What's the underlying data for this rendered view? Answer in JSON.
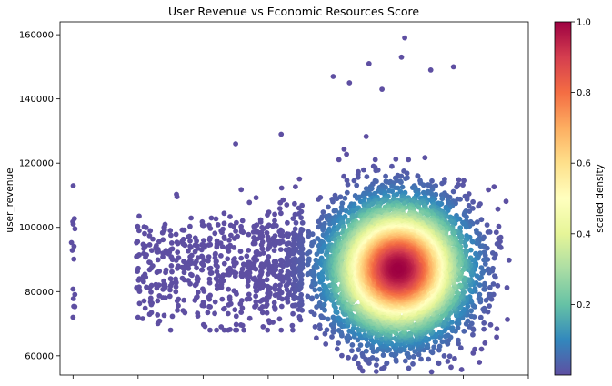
{
  "chart_data": {
    "type": "scatter",
    "title": "User Revenue vs Economic Resources Score",
    "xlabel": "",
    "ylabel": "user_revenue",
    "xlim": [
      -0.2,
      7.0
    ],
    "ylim": [
      54000,
      164000
    ],
    "x_ticks": [
      0,
      1,
      2,
      3,
      4,
      5,
      6,
      7
    ],
    "x_tick_labels_visible": false,
    "y_ticks": [
      60000,
      80000,
      100000,
      120000,
      140000,
      160000
    ],
    "y_tick_labels": [
      "60000",
      "80000",
      "100000",
      "120000",
      "140000",
      "160000"
    ],
    "grid": false,
    "color_encoding": "scaled density",
    "colorbar": {
      "label": "scaled density",
      "range": [
        0,
        1
      ],
      "ticks": [
        0.2,
        0.4,
        0.6,
        0.8,
        1.0
      ],
      "tick_labels": [
        "0.2",
        "0.4",
        "0.6",
        "0.8",
        "1.0"
      ],
      "colormap": "Spectral_r",
      "stops": [
        "#5e4fa2",
        "#3288bd",
        "#66c2a5",
        "#abdda4",
        "#e6f598",
        "#ffffbf",
        "#fee08b",
        "#fdae61",
        "#f46d43",
        "#d53e4f",
        "#9e0142"
      ]
    },
    "density_peak": {
      "x": 5.0,
      "y": 87000
    },
    "outliers": [
      {
        "x": 5.1,
        "y": 159000
      },
      {
        "x": 5.05,
        "y": 153000
      },
      {
        "x": 4.55,
        "y": 151000
      },
      {
        "x": 5.85,
        "y": 150000
      },
      {
        "x": 5.5,
        "y": 149000
      },
      {
        "x": 4.0,
        "y": 147000
      },
      {
        "x": 4.25,
        "y": 145000
      },
      {
        "x": 4.75,
        "y": 143000
      },
      {
        "x": 2.5,
        "y": 126000
      },
      {
        "x": 3.2,
        "y": 129000
      },
      {
        "x": 0.0,
        "y": 72000
      },
      {
        "x": 1.0,
        "y": 72000
      },
      {
        "x": 4.5,
        "y": 59000
      },
      {
        "x": 5.35,
        "y": 59000
      }
    ]
  }
}
